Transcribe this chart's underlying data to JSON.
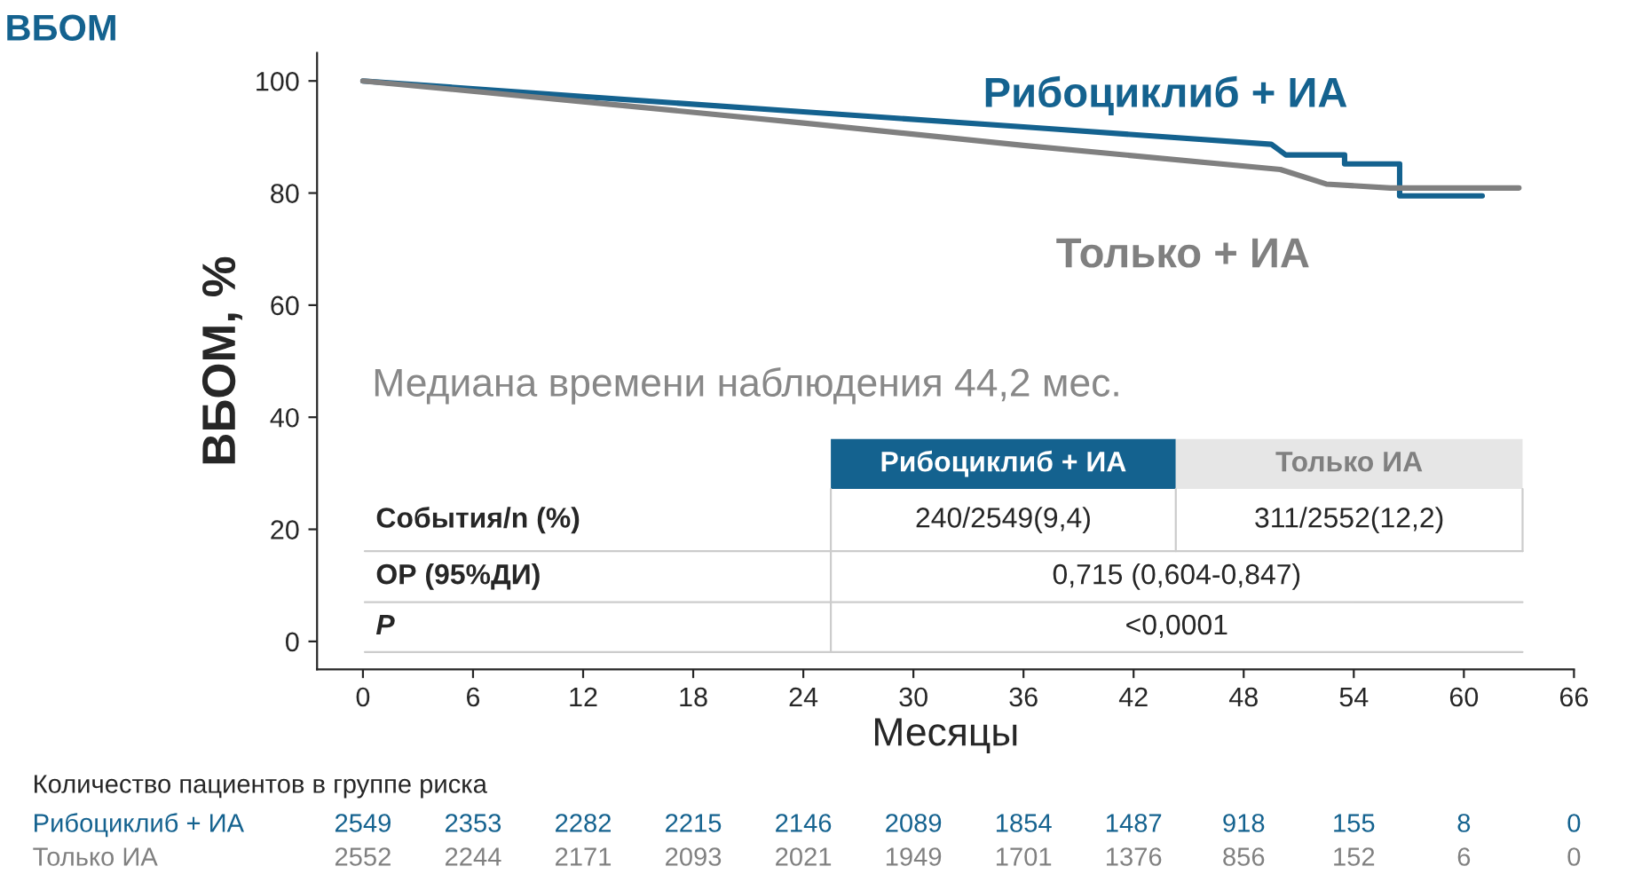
{
  "chart_data": {
    "type": "line",
    "title": "ВБОМ",
    "xlabel": "Месяцы",
    "ylabel": "ВБОМ, %",
    "series": [
      {
        "name": "Рибоциклиб + ИА",
        "color": "#14628f",
        "x": [
          0,
          12,
          24,
          36,
          49.5,
          50.3,
          53.5,
          53.5,
          56.5,
          56.5,
          61
        ],
        "values": [
          100,
          97.2,
          94.5,
          91.8,
          88.7,
          86.8,
          86.8,
          85.2,
          85.2,
          79.5,
          79.5
        ]
      },
      {
        "name": "Только + ИА",
        "color": "#808080",
        "x": [
          0,
          12,
          24,
          36,
          50,
          52.5,
          56,
          63
        ],
        "values": [
          100,
          96.3,
          92.5,
          88.5,
          84.2,
          81.6,
          80.9,
          80.9
        ]
      }
    ],
    "xlim": [
      -2.5,
      66
    ],
    "xticks": [
      0,
      6,
      12,
      18,
      24,
      30,
      36,
      42,
      48,
      54,
      60,
      66
    ],
    "ylim": [
      -5,
      105
    ],
    "yticks": [
      0,
      20,
      40,
      60,
      80,
      100
    ],
    "grid": false,
    "legend": false,
    "marker": "none",
    "line_style": "solid",
    "annotations": [
      "Медиана времени наблюдения 44,2 мес.",
      "Рибоциклиб + ИА",
      "Только ИА",
      "События/n (%)",
      "240/2549(9,4)",
      "311/2552(12,2)",
      "ОР (95%ДИ)",
      "0,715 (0,604-0,847)",
      "P",
      "<0,0001",
      "Количество пациентов в группе риска",
      "Рибоциклиб + ИА",
      "2549",
      "2353",
      "2282",
      "2215",
      "2146",
      "2089",
      "1854",
      "1487",
      "918",
      "155",
      "8",
      "0",
      "Только ИА",
      "2552",
      "2244",
      "2171",
      "2093",
      "2021",
      "1949",
      "1701",
      "1376",
      "856",
      "152",
      "6",
      "0"
    ]
  }
}
